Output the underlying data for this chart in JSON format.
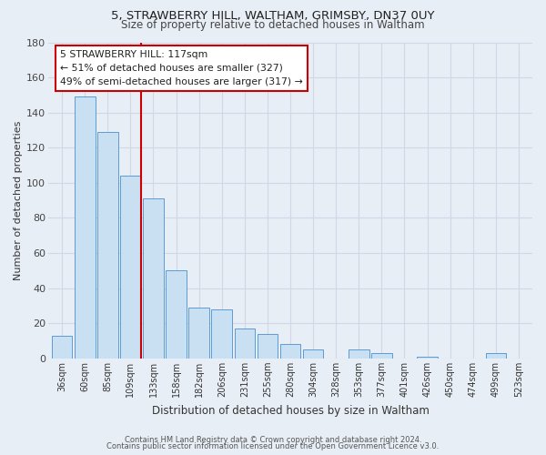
{
  "title": "5, STRAWBERRY HILL, WALTHAM, GRIMSBY, DN37 0UY",
  "subtitle": "Size of property relative to detached houses in Waltham",
  "xlabel": "Distribution of detached houses by size in Waltham",
  "ylabel": "Number of detached properties",
  "bar_labels": [
    "36sqm",
    "60sqm",
    "85sqm",
    "109sqm",
    "133sqm",
    "158sqm",
    "182sqm",
    "206sqm",
    "231sqm",
    "255sqm",
    "280sqm",
    "304sqm",
    "328sqm",
    "353sqm",
    "377sqm",
    "401sqm",
    "426sqm",
    "450sqm",
    "474sqm",
    "499sqm",
    "523sqm"
  ],
  "bar_values": [
    13,
    149,
    129,
    104,
    91,
    50,
    29,
    28,
    17,
    14,
    8,
    5,
    0,
    5,
    3,
    0,
    1,
    0,
    0,
    3,
    0
  ],
  "bar_color": "#c9dff2",
  "bar_edge_color": "#5b9bd5",
  "marker_line_color": "#cc0000",
  "annotation_line1": "5 STRAWBERRY HILL: 117sqm",
  "annotation_line2": "← 51% of detached houses are smaller (327)",
  "annotation_line3": "49% of semi-detached houses are larger (317) →",
  "red_line_bar_index": 3,
  "ylim": [
    0,
    180
  ],
  "yticks": [
    0,
    20,
    40,
    60,
    80,
    100,
    120,
    140,
    160,
    180
  ],
  "grid_color": "#d0d8e8",
  "bg_color": "#e8eef5",
  "footer1": "Contains HM Land Registry data © Crown copyright and database right 2024.",
  "footer2": "Contains public sector information licensed under the Open Government Licence v3.0."
}
